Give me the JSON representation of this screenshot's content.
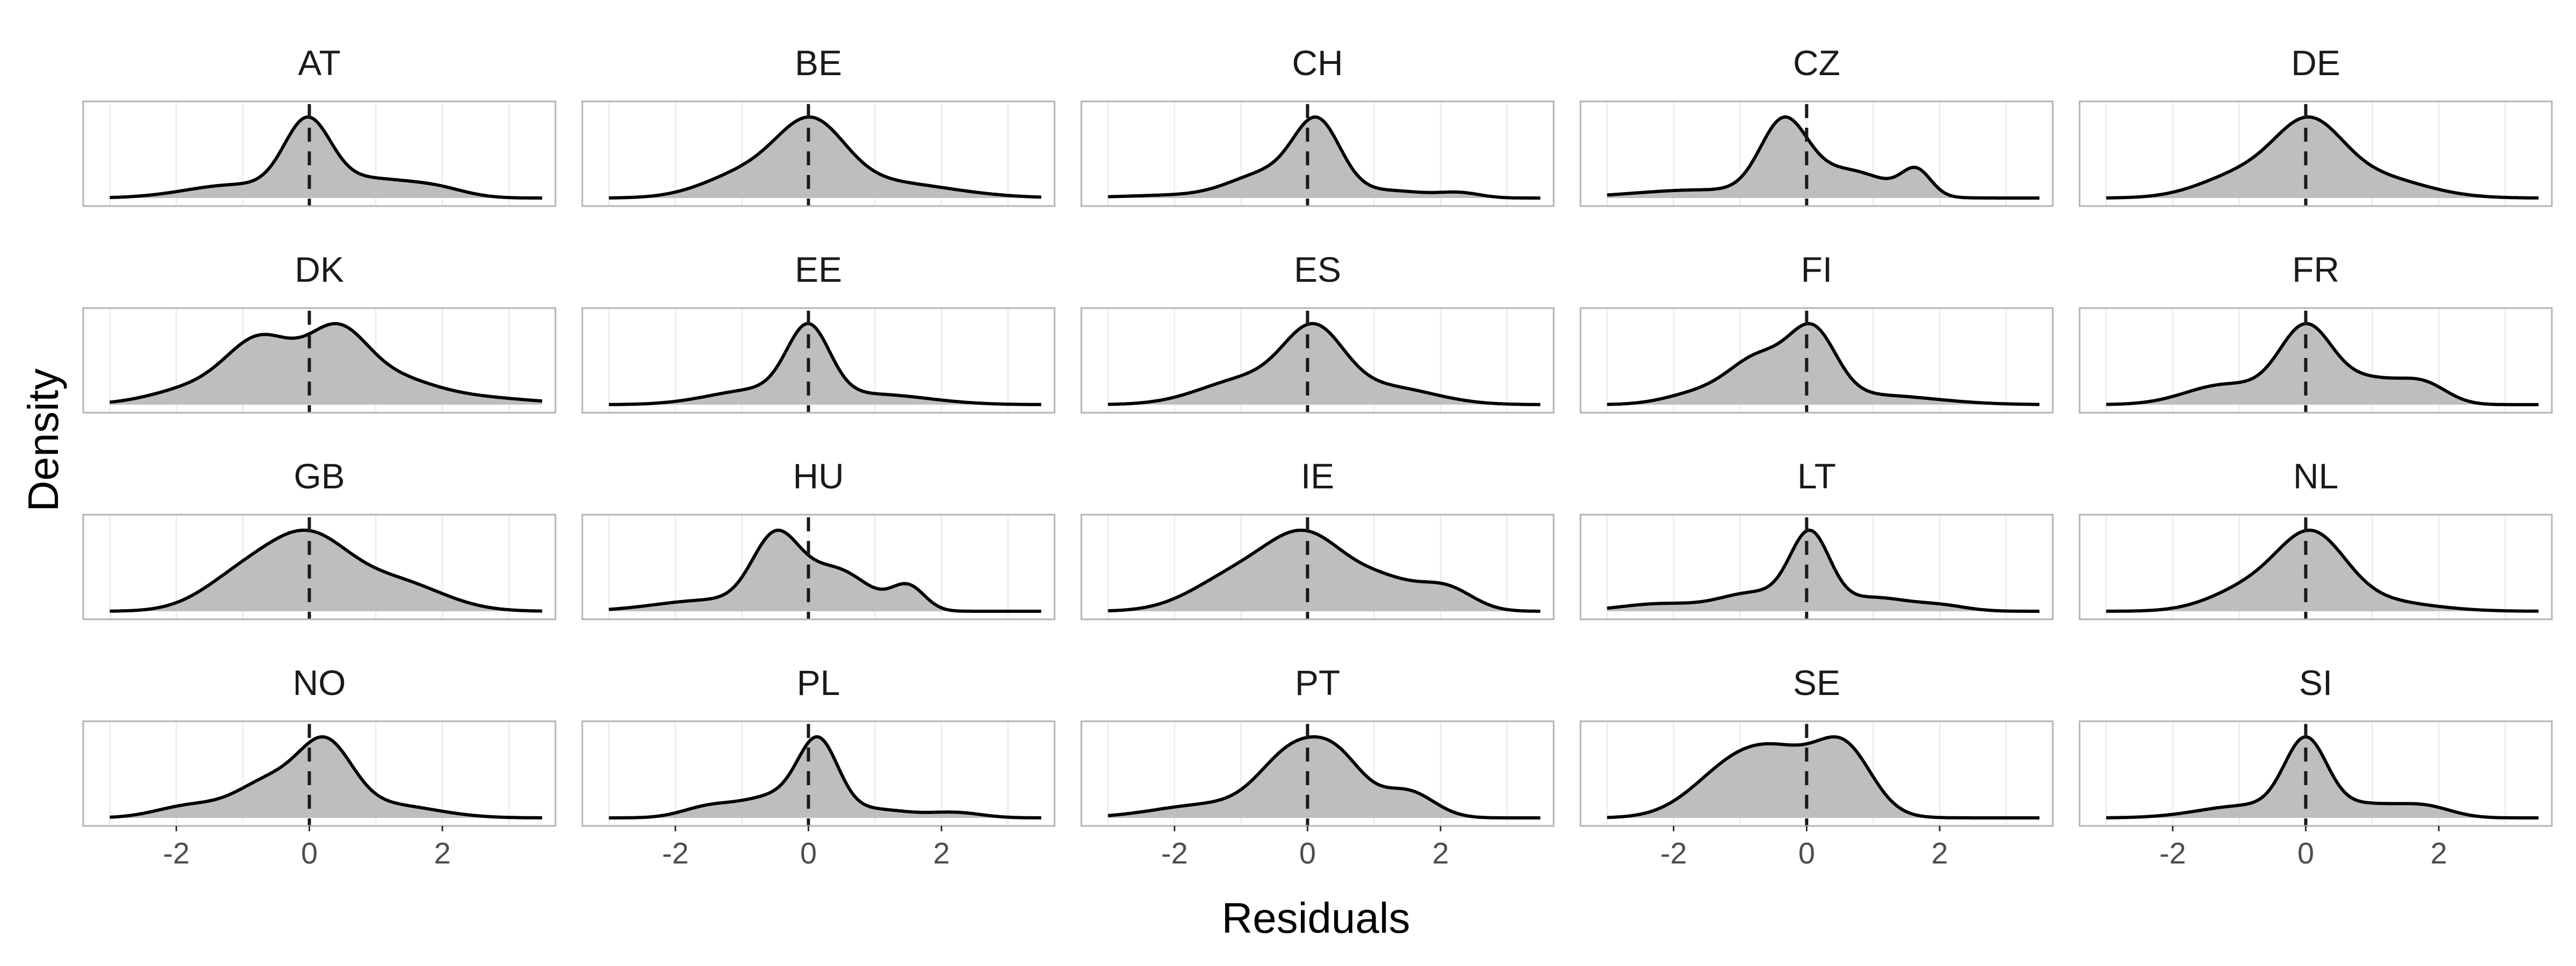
{
  "chart_data": {
    "type": "area",
    "xlabel": "Residuals",
    "ylabel": "Density",
    "xlim": [
      -3.4,
      3.7
    ],
    "x_ticks": [
      -2,
      0,
      2
    ],
    "x_tick_labels": [
      "-2",
      "0",
      "2"
    ],
    "reference_line": {
      "x": 0,
      "style": "dashed"
    },
    "fill_color": "#bebebe",
    "grid": true,
    "layout": {
      "rows": 4,
      "cols": 5
    },
    "panels": [
      {
        "name": "AT",
        "components": [
          [
            0.5,
            -0.03,
            0.35
          ],
          [
            0.22,
            0.9,
            0.6
          ],
          [
            0.2,
            -1.1,
            0.75
          ],
          [
            0.08,
            1.9,
            0.45
          ]
        ]
      },
      {
        "name": "BE",
        "components": [
          [
            0.5,
            0.05,
            0.5
          ],
          [
            0.25,
            -0.9,
            0.65
          ],
          [
            0.25,
            1.1,
            1.0
          ]
        ]
      },
      {
        "name": "CH",
        "components": [
          [
            0.55,
            0.15,
            0.35
          ],
          [
            0.3,
            -0.6,
            0.55
          ],
          [
            0.1,
            1.2,
            0.6
          ],
          [
            0.05,
            -2.0,
            0.8
          ],
          [
            0.03,
            2.3,
            0.3
          ]
        ]
      },
      {
        "name": "CZ",
        "components": [
          [
            0.45,
            -0.35,
            0.35
          ],
          [
            0.3,
            0.6,
            0.6
          ],
          [
            0.1,
            1.65,
            0.22
          ],
          [
            0.15,
            -1.6,
            1.0
          ]
        ]
      },
      {
        "name": "DE",
        "components": [
          [
            0.5,
            0.05,
            0.5
          ],
          [
            0.25,
            -0.9,
            0.65
          ],
          [
            0.25,
            1.0,
            0.75
          ]
        ]
      },
      {
        "name": "DK",
        "components": [
          [
            0.35,
            -0.7,
            0.5
          ],
          [
            0.35,
            0.4,
            0.45
          ],
          [
            0.15,
            1.2,
            0.6
          ],
          [
            0.15,
            -1.6,
            0.7
          ],
          [
            0.1,
            2.2,
            1.0
          ]
        ]
      },
      {
        "name": "EE",
        "components": [
          [
            0.55,
            0.0,
            0.32
          ],
          [
            0.25,
            -0.8,
            0.7
          ],
          [
            0.2,
            1.0,
            0.8
          ]
        ]
      },
      {
        "name": "ES",
        "components": [
          [
            0.5,
            0.1,
            0.45
          ],
          [
            0.3,
            -0.9,
            0.7
          ],
          [
            0.2,
            1.2,
            0.7
          ]
        ]
      },
      {
        "name": "FI",
        "components": [
          [
            0.4,
            0.1,
            0.35
          ],
          [
            0.35,
            -0.7,
            0.45
          ],
          [
            0.15,
            1.0,
            0.9
          ],
          [
            0.1,
            -1.6,
            0.5
          ]
        ]
      },
      {
        "name": "FR",
        "components": [
          [
            0.5,
            0.0,
            0.4
          ],
          [
            0.2,
            -1.2,
            0.6
          ],
          [
            0.2,
            1.0,
            0.5
          ],
          [
            0.1,
            1.8,
            0.35
          ]
        ]
      },
      {
        "name": "GB",
        "components": [
          [
            0.5,
            0.0,
            0.6
          ],
          [
            0.25,
            -1.0,
            0.6
          ],
          [
            0.25,
            1.3,
            0.7
          ]
        ]
      },
      {
        "name": "HU",
        "components": [
          [
            0.4,
            -0.5,
            0.35
          ],
          [
            0.35,
            0.4,
            0.5
          ],
          [
            0.1,
            1.5,
            0.25
          ],
          [
            0.15,
            -1.5,
            0.8
          ]
        ]
      },
      {
        "name": "IE",
        "components": [
          [
            0.5,
            0.0,
            0.6
          ],
          [
            0.25,
            -1.1,
            0.65
          ],
          [
            0.15,
            1.2,
            0.5
          ],
          [
            0.1,
            2.1,
            0.4
          ]
        ]
      },
      {
        "name": "LT",
        "components": [
          [
            0.5,
            0.05,
            0.3
          ],
          [
            0.2,
            -0.8,
            0.5
          ],
          [
            0.15,
            1.0,
            0.5
          ],
          [
            0.1,
            -2.2,
            0.6
          ],
          [
            0.05,
            2.0,
            0.4
          ]
        ]
      },
      {
        "name": "NL",
        "components": [
          [
            0.6,
            0.1,
            0.5
          ],
          [
            0.25,
            -0.8,
            0.6
          ],
          [
            0.15,
            1.0,
            0.8
          ]
        ]
      },
      {
        "name": "NO",
        "components": [
          [
            0.45,
            0.25,
            0.4
          ],
          [
            0.3,
            -0.6,
            0.5
          ],
          [
            0.15,
            1.2,
            0.7
          ],
          [
            0.1,
            -1.8,
            0.5
          ]
        ]
      },
      {
        "name": "PL",
        "components": [
          [
            0.5,
            0.15,
            0.3
          ],
          [
            0.25,
            -0.5,
            0.5
          ],
          [
            0.1,
            -1.5,
            0.4
          ],
          [
            0.1,
            1.0,
            0.5
          ],
          [
            0.05,
            2.2,
            0.4
          ]
        ]
      },
      {
        "name": "PT",
        "components": [
          [
            0.45,
            -0.2,
            0.5
          ],
          [
            0.25,
            0.5,
            0.4
          ],
          [
            0.15,
            1.5,
            0.4
          ],
          [
            0.15,
            -1.5,
            0.8
          ]
        ]
      },
      {
        "name": "SE",
        "components": [
          [
            0.5,
            -0.3,
            0.7
          ],
          [
            0.25,
            0.6,
            0.4
          ],
          [
            0.25,
            -1.2,
            0.6
          ]
        ]
      },
      {
        "name": "SI",
        "components": [
          [
            0.55,
            0.0,
            0.32
          ],
          [
            0.2,
            -0.9,
            0.7
          ],
          [
            0.15,
            0.9,
            0.5
          ],
          [
            0.1,
            1.8,
            0.4
          ]
        ]
      }
    ]
  }
}
